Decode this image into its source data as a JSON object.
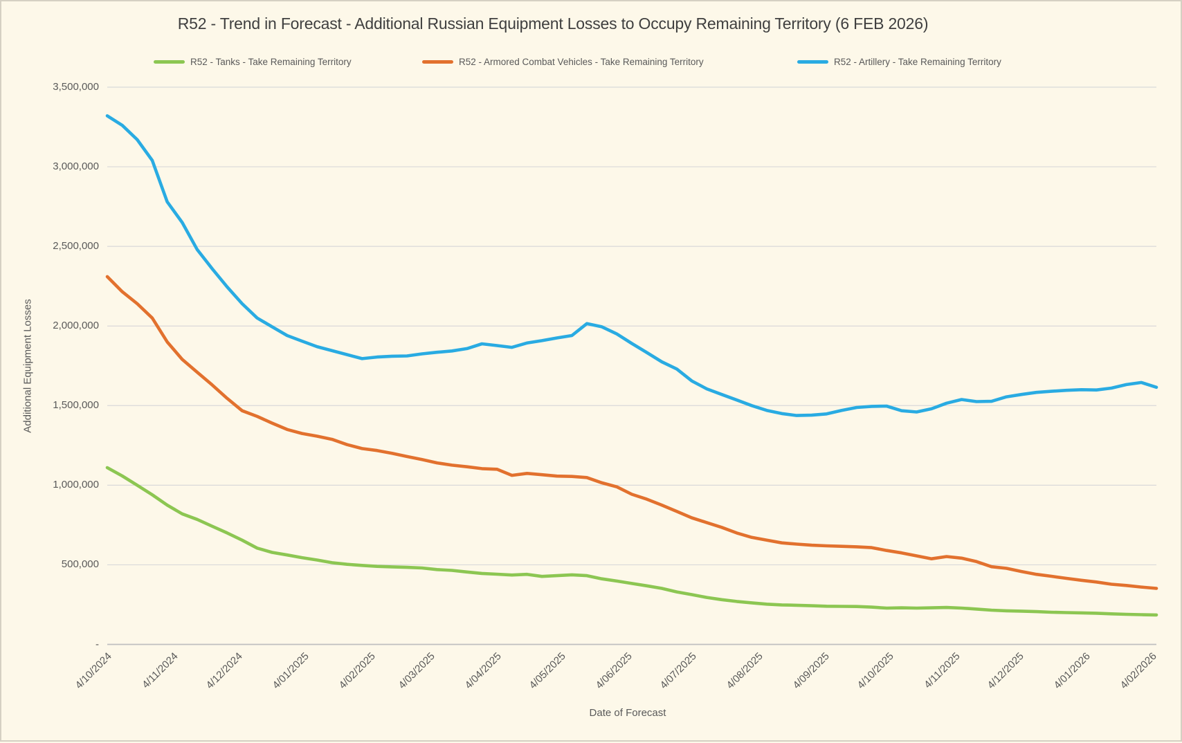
{
  "window": {
    "background": "#FDF8E9",
    "border_color": "#D5D0C3"
  },
  "chart_data": {
    "type": "line",
    "title": "R52 - Trend in Forecast - Additional Russian Equipment Losses to Occupy Remaining Territory (6 FEB 2026)",
    "xlabel": "Date of Forecast",
    "ylabel": "Additional Equipment Losses",
    "legend_position": "top",
    "grid": true,
    "colors": {
      "gridline": "#D9D9D9",
      "axis_line": "#BFBFBF",
      "tick_text": "#595959",
      "title_text": "#3F3F3F"
    },
    "legend": {
      "item_x": [
        220,
        608,
        1150
      ]
    },
    "y_axis": {
      "min": 0,
      "max": 3500000,
      "ticks": [
        {
          "label": "-",
          "value": 0
        },
        {
          "label": "500,000",
          "value": 500000
        },
        {
          "label": "1,000,000",
          "value": 1000000
        },
        {
          "label": "1,500,000",
          "value": 1500000
        },
        {
          "label": "2,000,000",
          "value": 2000000
        },
        {
          "label": "2,500,000",
          "value": 2500000
        },
        {
          "label": "3,000,000",
          "value": 3000000
        },
        {
          "label": "3,500,000",
          "value": 3500000
        }
      ]
    },
    "x_axis": {
      "tick_labels": [
        "4/10/2024",
        "4/11/2024",
        "4/12/2024",
        "4/01/2025",
        "4/02/2025",
        "4/03/2025",
        "4/04/2025",
        "4/05/2025",
        "4/06/2025",
        "4/07/2025",
        "4/08/2025",
        "4/09/2025",
        "4/10/2025",
        "4/11/2025",
        "4/12/2025",
        "4/01/2026",
        "4/02/2026"
      ]
    },
    "dates": [
      "4/10/2024",
      "11/10/2024",
      "18/10/2024",
      "25/10/2024",
      "1/11/2024",
      "8/11/2024",
      "15/11/2024",
      "22/11/2024",
      "29/11/2024",
      "6/12/2024",
      "13/12/2024",
      "20/12/2024",
      "27/12/2024",
      "3/01/2025",
      "10/01/2025",
      "17/01/2025",
      "24/01/2025",
      "31/01/2025",
      "7/02/2025",
      "14/02/2025",
      "21/02/2025",
      "28/02/2025",
      "7/03/2025",
      "14/03/2025",
      "21/03/2025",
      "28/03/2025",
      "4/04/2025",
      "11/04/2025",
      "18/04/2025",
      "25/04/2025",
      "2/05/2025",
      "9/05/2025",
      "16/05/2025",
      "23/05/2025",
      "30/05/2025",
      "6/06/2025",
      "13/06/2025",
      "20/06/2025",
      "27/06/2025",
      "4/07/2025",
      "11/07/2025",
      "18/07/2025",
      "25/07/2025",
      "1/08/2025",
      "8/08/2025",
      "15/08/2025",
      "22/08/2025",
      "29/08/2025",
      "5/09/2025",
      "12/09/2025",
      "19/09/2025",
      "26/09/2025",
      "3/10/2025",
      "10/10/2025",
      "17/10/2025",
      "24/10/2025",
      "31/10/2025",
      "7/11/2025",
      "14/11/2025",
      "21/11/2025",
      "28/11/2025",
      "5/12/2025",
      "12/12/2025",
      "19/12/2025",
      "26/12/2025",
      "2/01/2026",
      "9/01/2026",
      "16/01/2026",
      "23/01/2026",
      "30/01/2026",
      "6/02/2026"
    ],
    "series": [
      {
        "name": "R52 - Tanks - Take Remaining Territory",
        "color": "#8CC652",
        "values": [
          1110000,
          1058000,
          1000000,
          940000,
          875000,
          820000,
          785000,
          742000,
          700000,
          655000,
          605000,
          578000,
          562000,
          545000,
          530000,
          513000,
          503000,
          496000,
          490000,
          487000,
          484000,
          480000,
          470000,
          465000,
          455000,
          446000,
          441000,
          436000,
          440000,
          427000,
          432000,
          437000,
          432000,
          412000,
          398000,
          383000,
          368000,
          352000,
          330000,
          313000,
          295000,
          281000,
          270000,
          261000,
          253000,
          248000,
          246000,
          243000,
          240000,
          239000,
          238000,
          234000,
          228000,
          230000,
          228000,
          230000,
          232000,
          228000,
          222000,
          215000,
          211000,
          209000,
          206000,
          202000,
          200000,
          198000,
          196000,
          192000,
          189000,
          187000,
          185000
        ]
      },
      {
        "name": "R52 - Armored Combat Vehicles - Take Remaining Territory",
        "color": "#E2712E",
        "values": [
          2310000,
          2215000,
          2140000,
          2050000,
          1900000,
          1790000,
          1710000,
          1630000,
          1545000,
          1468000,
          1432000,
          1390000,
          1350000,
          1325000,
          1308000,
          1288000,
          1255000,
          1230000,
          1218000,
          1200000,
          1180000,
          1161000,
          1140000,
          1126000,
          1116000,
          1104000,
          1100000,
          1062000,
          1074000,
          1066000,
          1057000,
          1055000,
          1048000,
          1015000,
          990000,
          943000,
          912000,
          875000,
          835000,
          795000,
          765000,
          735000,
          700000,
          672000,
          655000,
          638000,
          630000,
          623000,
          619000,
          616000,
          613000,
          608000,
          590000,
          575000,
          556000,
          538000,
          552000,
          542000,
          520000,
          488000,
          478000,
          458000,
          440000,
          428000,
          415000,
          403000,
          392000,
          378000,
          370000,
          360000,
          352000
        ]
      },
      {
        "name": "R52 - Artillery - Take Remaining Territory",
        "color": "#29ABE2",
        "values": [
          3320000,
          3260000,
          3170000,
          3040000,
          2780000,
          2650000,
          2480000,
          2360000,
          2245000,
          2140000,
          2050000,
          1995000,
          1940000,
          1905000,
          1870000,
          1845000,
          1820000,
          1795000,
          1805000,
          1810000,
          1812000,
          1825000,
          1835000,
          1843000,
          1858000,
          1888000,
          1877000,
          1866000,
          1893000,
          1908000,
          1925000,
          1940000,
          2015000,
          1995000,
          1950000,
          1890000,
          1833000,
          1775000,
          1730000,
          1655000,
          1605000,
          1570000,
          1535000,
          1500000,
          1470000,
          1450000,
          1438000,
          1440000,
          1448000,
          1470000,
          1488000,
          1495000,
          1497000,
          1468000,
          1460000,
          1480000,
          1515000,
          1538000,
          1525000,
          1527000,
          1555000,
          1570000,
          1583000,
          1590000,
          1596000,
          1600000,
          1598000,
          1610000,
          1632000,
          1645000,
          1615000
        ]
      }
    ]
  }
}
